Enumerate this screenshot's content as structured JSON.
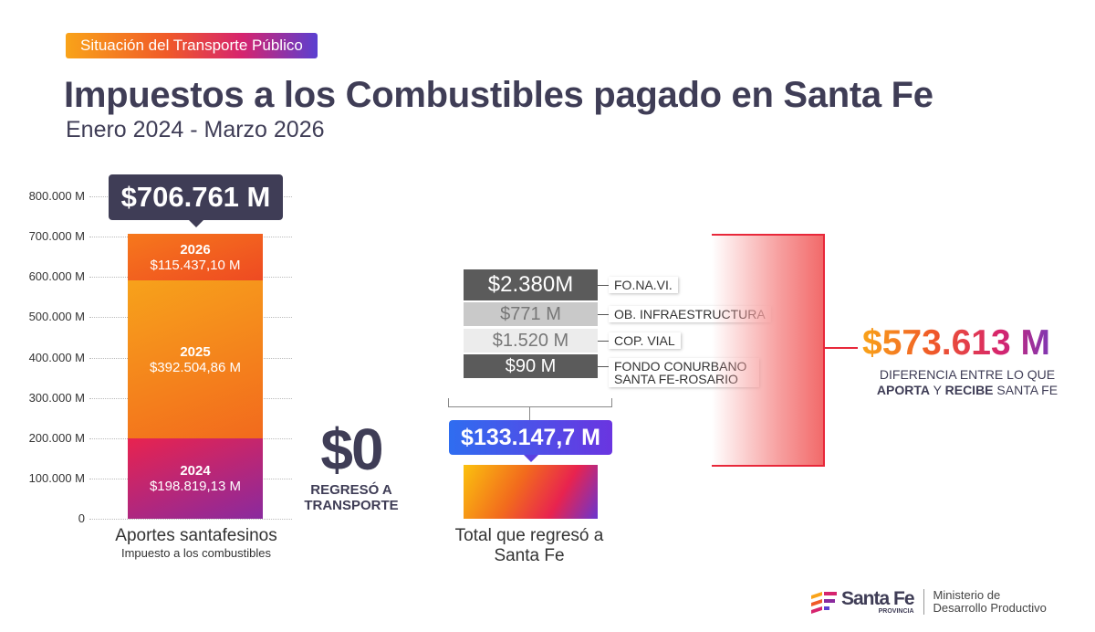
{
  "header": {
    "pill": "Situación del Transporte Público",
    "title": "Impuestos a los Combustibles pagado en Santa Fe",
    "subtitle": "Enero 2024 - Marzo 2026"
  },
  "chart_data": {
    "type": "bar",
    "ylim": [
      0,
      800000
    ],
    "yunit": "M",
    "yticks": [
      "0",
      "100.000 M",
      "200.000 M",
      "300.000 M",
      "400.000 M",
      "500.000 M",
      "600.000 M",
      "700.000 M",
      "800.000 M"
    ],
    "grid": true,
    "aportes": {
      "total_label": "$706.761 M",
      "caption": "Aportes santafesinos",
      "subcaption": "Impuesto a los combustibles",
      "segments": [
        {
          "year": "2024",
          "value": 198819.13,
          "label": "$198.819,13 M",
          "color_from": "#e8234f",
          "color_to": "#8a2a9e"
        },
        {
          "year": "2025",
          "value": 392504.86,
          "label": "$392.504,86 M",
          "color_from": "#f7a21b",
          "color_to": "#f26a1d"
        },
        {
          "year": "2026",
          "value": 115437.1,
          "label": "$115.437,10 M",
          "color_from": "#f6781c",
          "color_to": "#ee4a22"
        }
      ]
    },
    "transporte": {
      "value": 0,
      "amount": "$0",
      "caption": "REGRESÓ A TRANSPORTE"
    },
    "regreso": {
      "value": 133147.7,
      "total_label": "$133.147,7 M",
      "caption": "Total que regresó a Santa Fe",
      "breakdown": [
        {
          "amount": "$2.380M",
          "label": "FO.NA.VI.",
          "bg": "#5b5b5b",
          "fg": "#ffffff"
        },
        {
          "amount": "$771 M",
          "label": "OB. INFRAESTRUCTURA",
          "bg": "#c9c9c9",
          "fg": "#777777"
        },
        {
          "amount": "$1.520 M",
          "label": "COP. VIAL",
          "bg": "#ececec",
          "fg": "#777777"
        },
        {
          "amount": "$90 M",
          "label": "FONDO CONURBANO SANTA FE-ROSARIO",
          "bg": "#5b5b5b",
          "fg": "#ffffff"
        }
      ]
    },
    "diferencia": {
      "amount": "$573.613 M",
      "caption_1": "DIFERENCIA ENTRE LO QUE",
      "caption_2a": "APORTA",
      "caption_2b": " Y ",
      "caption_2c": "RECIBE",
      "caption_2d": " SANTA FE"
    }
  },
  "footer": {
    "logo": "Santa Fe",
    "logo_sub": "PROVINCIA",
    "ministry_1": "Ministerio de",
    "ministry_2": "Desarrollo Productivo"
  }
}
